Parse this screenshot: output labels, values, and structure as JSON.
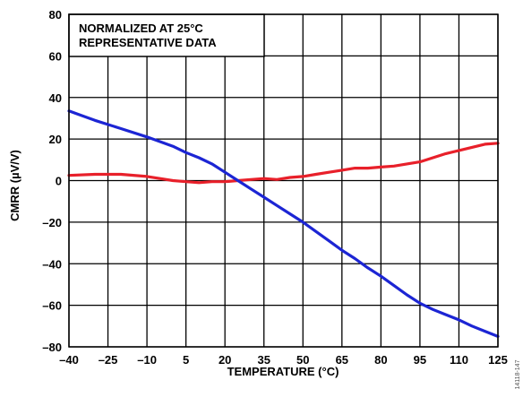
{
  "chart_data": {
    "type": "line",
    "xlabel": "TEMPERATURE (°C)",
    "ylabel": "CMRR (µV/V)",
    "xlim": [
      -40,
      125
    ],
    "ylim": [
      -80,
      80
    ],
    "x_ticks": [
      -40,
      -25,
      -10,
      5,
      20,
      35,
      50,
      65,
      80,
      95,
      110,
      125
    ],
    "x_tick_labels": [
      "–40",
      "–25",
      "–10",
      "5",
      "20",
      "35",
      "50",
      "65",
      "80",
      "95",
      "110",
      "125"
    ],
    "y_ticks": [
      80,
      60,
      40,
      20,
      0,
      -20,
      -40,
      -60,
      -80
    ],
    "y_tick_labels": [
      "80",
      "60",
      "40",
      "20",
      "0",
      "–20",
      "–40",
      "–60",
      "–80"
    ],
    "grid": true,
    "annotations": [
      "NORMALIZED AT 25°C",
      "REPRESENTATIVE DATA"
    ],
    "series": [
      {
        "color": "#e8202a",
        "x": [
          -40,
          -30,
          -25,
          -20,
          -10,
          -5,
          0,
          5,
          10,
          15,
          20,
          25,
          30,
          35,
          40,
          45,
          50,
          55,
          60,
          65,
          70,
          75,
          80,
          85,
          90,
          95,
          100,
          105,
          110,
          115,
          120,
          125
        ],
        "y": [
          2.5,
          3,
          3,
          3,
          2,
          1,
          0,
          -0.5,
          -1,
          -0.5,
          -0.5,
          0,
          0.5,
          1,
          0.5,
          1.5,
          2,
          3,
          4,
          5,
          6,
          6,
          6.5,
          7,
          8,
          9,
          11,
          13,
          14.5,
          16,
          17.5,
          18
        ]
      },
      {
        "color": "#1c25d4",
        "x": [
          -40,
          -30,
          -20,
          -10,
          0,
          5,
          10,
          15,
          20,
          25,
          30,
          35,
          40,
          45,
          50,
          55,
          60,
          65,
          70,
          75,
          80,
          85,
          90,
          95,
          100,
          105,
          110,
          115,
          120,
          125
        ],
        "y": [
          33.5,
          29,
          25,
          21,
          16.5,
          13.5,
          11,
          8,
          4,
          0,
          -4,
          -8,
          -12,
          -16,
          -20,
          -24.5,
          -29,
          -33.5,
          -37.5,
          -42,
          -46,
          -50.5,
          -55,
          -59,
          -62,
          -64.5,
          -67,
          -70,
          -72.5,
          -75
        ]
      }
    ]
  },
  "figure_id": "14118-147"
}
